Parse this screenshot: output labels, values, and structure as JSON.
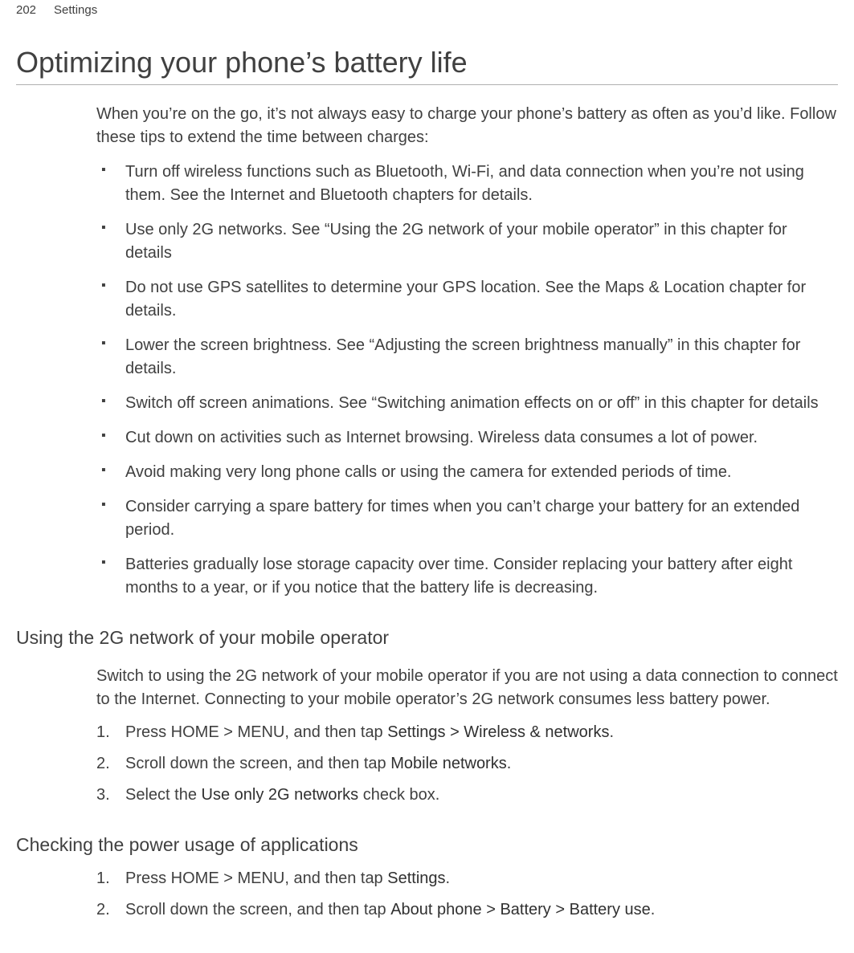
{
  "header": {
    "page_number": "202",
    "section": "Settings"
  },
  "title": "Optimizing your phone’s battery life",
  "intro": "When you’re on the go, it’s not always easy to charge your phone’s battery as often as you’d like. Follow these tips to extend the time between charges:",
  "tips": [
    "Turn off wireless functions such as Bluetooth, Wi-Fi, and data connection when you’re not using them. See the Internet and Bluetooth chapters for details.",
    "Use only 2G networks. See “Using the 2G network of your mobile operator” in this chapter for details",
    "Do not use GPS satellites to determine your GPS location. See the Maps & Location chapter for details.",
    "Lower the screen brightness. See “Adjusting the screen brightness manually” in this chapter for details.",
    "Switch off screen animations. See “Switching animation effects on or off” in this chapter for details",
    "Cut down on activities such as Internet browsing. Wireless data consumes a lot of power.",
    "Avoid making very long phone calls or using the camera for extended periods of time.",
    "Consider carrying a spare battery for times when you can’t charge your battery for an extended period.",
    "Batteries gradually lose storage capacity over time. Consider replacing your battery after eight months to a year, or if you notice that the battery life is decreasing."
  ],
  "section1": {
    "title": "Using the 2G network of your mobile operator",
    "intro": "Switch to using the 2G network of your mobile operator if you are not using a data connection to connect to the Internet. Connecting to your mobile operator’s 2G network consumes less battery power.",
    "steps": [
      {
        "pre": "Press HOME > MENU, and then tap ",
        "bold": "Settings > Wireless & networks",
        "post": "."
      },
      {
        "pre": "Scroll down the screen, and then tap ",
        "bold": "Mobile networks",
        "post": "."
      },
      {
        "pre": "Select the ",
        "bold": "Use only 2G networks",
        "post": " check box."
      }
    ]
  },
  "section2": {
    "title": "Checking the power usage of applications",
    "steps": [
      {
        "pre": "Press HOME > MENU, and then tap ",
        "bold": "Settings",
        "post": "."
      },
      {
        "pre": "Scroll down the screen, and then tap ",
        "bold": "About phone > Battery > Battery use",
        "post": "."
      }
    ]
  }
}
